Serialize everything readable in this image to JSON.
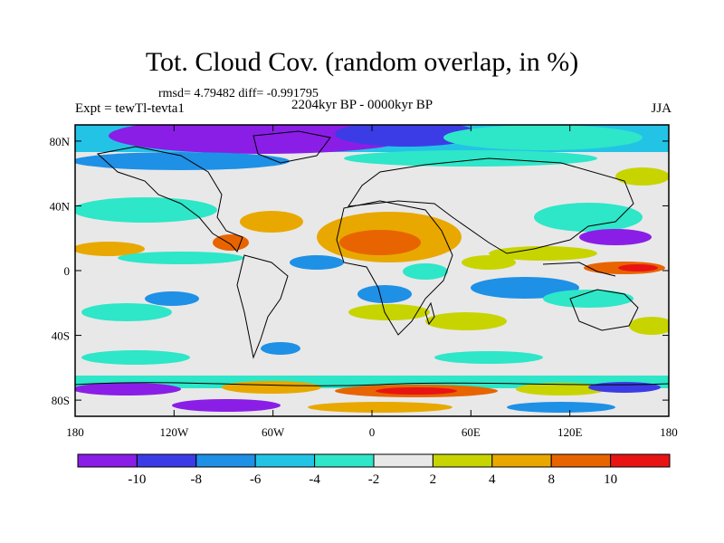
{
  "header": {
    "title": "Tot. Cloud Cov. (random overlap, in %)",
    "stats": "rmsd= 4.79482 diff= -0.991795",
    "experiment": "Expt = tewTl-tevta1",
    "period": "2204kyr BP - 0000kyr BP",
    "season": "JJA"
  },
  "map": {
    "lat_ticks": [
      "80N",
      "40N",
      "0",
      "40S",
      "80S"
    ],
    "lat_values": [
      80,
      40,
      0,
      -40,
      -80
    ],
    "lon_ticks": [
      "180",
      "120W",
      "60W",
      "0",
      "60E",
      "120E",
      "180"
    ],
    "lon_values": [
      -180,
      -120,
      -60,
      0,
      60,
      120,
      180
    ],
    "lat_range": [
      -90,
      90
    ],
    "lon_range": [
      -180,
      180
    ]
  },
  "colorbar": {
    "labels": [
      "-10",
      "-8",
      "-6",
      "-4",
      "-2",
      "2",
      "4",
      "8",
      "10"
    ],
    "colors": [
      "#8a1ee6",
      "#3c3ce6",
      "#1e90e6",
      "#23c3e6",
      "#2ee6c8",
      "#e8e8e8",
      "#c8d400",
      "#e8a800",
      "#e86400",
      "#e81414"
    ]
  }
}
